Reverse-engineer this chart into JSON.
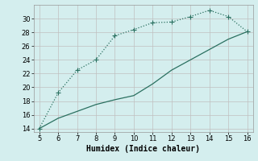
{
  "xlabel": "Humidex (Indice chaleur)",
  "background_color": "#d4eeee",
  "grid_color": "#c0c0c0",
  "line_color": "#2a7060",
  "xlim": [
    4.7,
    16.3
  ],
  "ylim": [
    13.5,
    32.0
  ],
  "xticks": [
    5,
    6,
    7,
    8,
    9,
    10,
    11,
    12,
    13,
    14,
    15,
    16
  ],
  "yticks": [
    14,
    16,
    18,
    20,
    22,
    24,
    26,
    28,
    30
  ],
  "upper_line_x": [
    5,
    6,
    7,
    8,
    9,
    10,
    11,
    12,
    13,
    14,
    15,
    16
  ],
  "upper_line_y": [
    14.0,
    19.2,
    22.5,
    24.0,
    27.5,
    28.4,
    29.4,
    29.5,
    30.3,
    31.2,
    30.3,
    28.1
  ],
  "lower_line_x": [
    5,
    6,
    7,
    8,
    9,
    10,
    11,
    12,
    13,
    14,
    15,
    16
  ],
  "lower_line_y": [
    14.0,
    15.5,
    16.5,
    17.5,
    18.2,
    18.8,
    20.5,
    22.5,
    24.0,
    25.5,
    27.0,
    28.1
  ],
  "marker": "+",
  "marker_size": 4,
  "line_width": 0.9,
  "tick_fontsize": 6,
  "label_fontsize": 7
}
